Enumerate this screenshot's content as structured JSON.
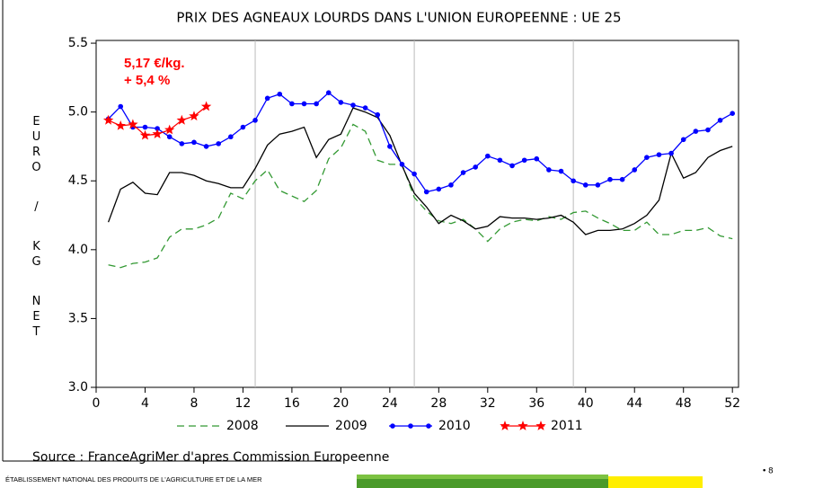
{
  "chart_data": {
    "type": "line",
    "title": "PRIX DES AGNEAUX LOURDS DANS L'UNION EUROPEENNE : UE 25",
    "y_label": "EURO / KG NET",
    "annotations": [
      "5,17 €/kg.",
      "+ 5,4 %"
    ],
    "source": "Source : FranceAgriMer d'apres Commission Europeenne",
    "footer": "ÉTABLISSEMENT NATIONAL DES PRODUITS DE L'AGRICULTURE ET DE LA MER",
    "page_number": "8",
    "x": [
      1,
      2,
      3,
      4,
      5,
      6,
      7,
      8,
      9,
      10,
      11,
      12,
      13,
      14,
      15,
      16,
      17,
      18,
      19,
      20,
      21,
      22,
      23,
      24,
      25,
      26,
      27,
      28,
      29,
      30,
      31,
      32,
      33,
      34,
      35,
      36,
      37,
      38,
      39,
      40,
      41,
      42,
      43,
      44,
      45,
      46,
      47,
      48,
      49,
      50,
      51,
      52
    ],
    "xlim": [
      0,
      52.5
    ],
    "xticks": [
      0,
      4,
      8,
      12,
      16,
      20,
      24,
      28,
      32,
      36,
      40,
      44,
      48,
      52
    ],
    "xgrid": [
      13,
      26,
      39
    ],
    "ylim": [
      3.0,
      5.52
    ],
    "yticks": [
      {
        "value": 3.0,
        "label": "3.0"
      },
      3.5,
      {
        "value": 4.0,
        "label": "4.0"
      },
      4.5,
      {
        "value": 5.0,
        "label": "5.0"
      },
      5.5
    ],
    "series": [
      {
        "name": "2008",
        "color": "#339933",
        "dash": true,
        "marker": "none",
        "values": [
          3.89,
          3.87,
          3.9,
          3.91,
          3.94,
          4.09,
          4.15,
          4.15,
          4.18,
          4.23,
          4.41,
          4.37,
          4.5,
          4.58,
          4.43,
          4.39,
          4.35,
          4.43,
          4.66,
          4.74,
          4.91,
          4.86,
          4.65,
          4.62,
          4.62,
          4.38,
          4.28,
          4.21,
          4.19,
          4.22,
          4.15,
          4.06,
          4.15,
          4.2,
          4.22,
          4.21,
          4.24,
          4.22,
          4.27,
          4.28,
          4.23,
          4.19,
          4.14,
          4.14,
          4.2,
          4.11,
          4.11,
          4.14,
          4.14,
          4.16,
          4.1,
          4.08
        ]
      },
      {
        "name": "2009",
        "color": "#000000",
        "dash": false,
        "marker": "none",
        "values": [
          4.2,
          4.44,
          4.49,
          4.41,
          4.4,
          4.56,
          4.56,
          4.54,
          4.5,
          4.48,
          4.45,
          4.45,
          4.59,
          4.76,
          4.84,
          4.86,
          4.89,
          4.67,
          4.8,
          4.84,
          5.03,
          5.0,
          4.96,
          4.83,
          4.61,
          4.41,
          4.31,
          4.19,
          4.25,
          4.21,
          4.15,
          4.17,
          4.24,
          4.23,
          4.23,
          4.22,
          4.23,
          4.25,
          4.2,
          4.11,
          4.14,
          4.14,
          4.15,
          4.19,
          4.25,
          4.36,
          4.7,
          4.52,
          4.56,
          4.67,
          4.72,
          4.75
        ]
      },
      {
        "name": "2010",
        "color": "#0000ff",
        "dash": false,
        "marker": "circle",
        "values": [
          4.95,
          5.04,
          4.89,
          4.89,
          4.88,
          4.82,
          4.77,
          4.78,
          4.75,
          4.77,
          4.82,
          4.89,
          4.94,
          5.1,
          5.13,
          5.06,
          5.06,
          5.06,
          5.14,
          5.07,
          5.05,
          5.03,
          4.98,
          4.75,
          4.62,
          4.55,
          4.42,
          4.44,
          4.47,
          4.56,
          4.6,
          4.68,
          4.65,
          4.61,
          4.65,
          4.66,
          4.58,
          4.57,
          4.5,
          4.47,
          4.47,
          4.51,
          4.51,
          4.58,
          4.67,
          4.69,
          4.7,
          4.8,
          4.86,
          4.87,
          4.94,
          4.99
        ]
      },
      {
        "name": "2011",
        "color": "#ff0000",
        "dash": false,
        "marker": "star",
        "values": [
          4.94,
          4.9,
          4.91,
          4.83,
          4.84,
          4.87,
          4.94,
          4.97,
          5.04,
          null,
          null,
          null,
          null,
          null,
          null,
          null,
          null,
          null,
          null,
          null,
          null,
          null,
          null,
          null,
          null,
          null,
          null,
          null,
          null,
          null,
          null,
          null,
          null,
          null,
          null,
          null,
          null,
          null,
          null,
          null,
          null,
          null,
          null,
          null,
          null,
          null,
          null,
          null,
          null,
          null,
          null,
          null
        ]
      }
    ]
  }
}
